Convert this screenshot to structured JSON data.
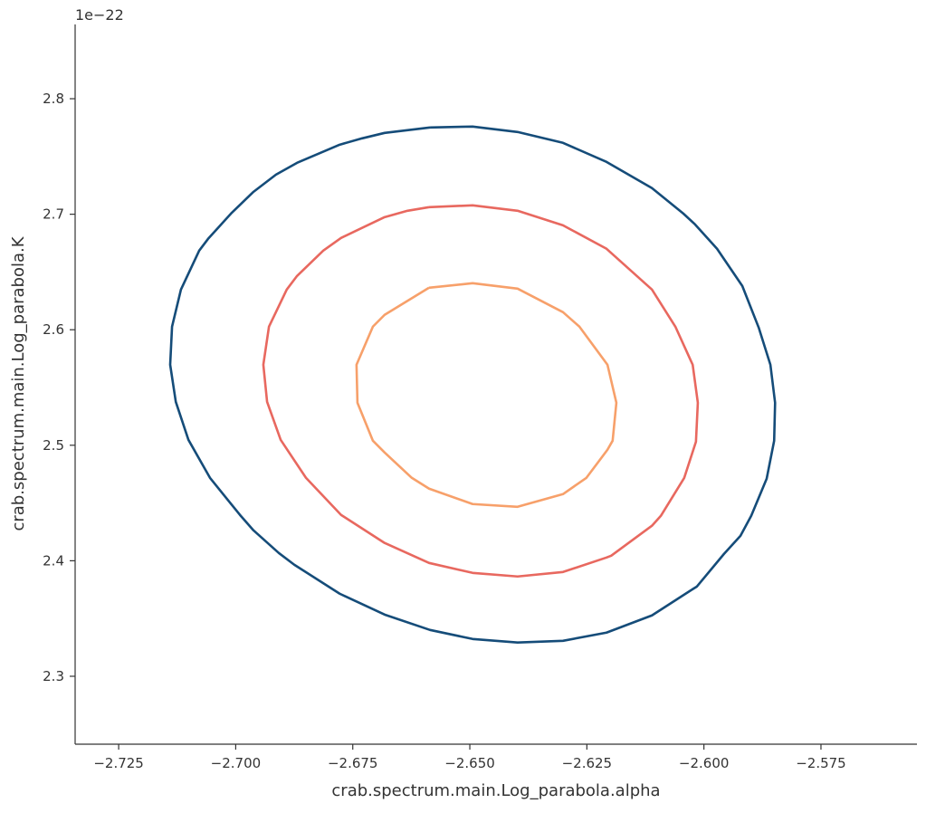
{
  "chart_data": {
    "type": "contour",
    "xlabel": "crab.spectrum.main.Log_parabola.alpha",
    "ylabel": "crab.spectrum.main.Log_parabola.K",
    "y_offset_label": "1e−22",
    "xlim": [
      -2.7343,
      -2.5545
    ],
    "ylim": [
      2.2412,
      2.8643
    ],
    "xticks": [
      {
        "value": -2.725,
        "label": "−2.725"
      },
      {
        "value": -2.7,
        "label": "−2.700"
      },
      {
        "value": -2.675,
        "label": "−2.675"
      },
      {
        "value": -2.65,
        "label": "−2.650"
      },
      {
        "value": -2.625,
        "label": "−2.625"
      },
      {
        "value": -2.6,
        "label": "−2.600"
      },
      {
        "value": -2.575,
        "label": "−2.575"
      }
    ],
    "yticks": [
      2.3,
      2.4,
      2.5,
      2.6,
      2.7,
      2.8
    ],
    "series": [
      {
        "color": "#154c79",
        "x": [
          -2.6585,
          -2.6494,
          -2.6398,
          -2.6301,
          -2.6208,
          -2.6111,
          -2.6044,
          -2.6019,
          -2.5972,
          -2.5918,
          -2.5883,
          -2.5858,
          -2.5848,
          -2.585,
          -2.5866,
          -2.5899,
          -2.5922,
          -2.5957,
          -2.6015,
          -2.6024,
          -2.6111,
          -2.6208,
          -2.6301,
          -2.6398,
          -2.6494,
          -2.6585,
          -2.6682,
          -2.6778,
          -2.6875,
          -2.6908,
          -2.6962,
          -2.6991,
          -2.7055,
          -2.7101,
          -2.7128,
          -2.714,
          -2.7136,
          -2.7117,
          -2.7078,
          -2.7059,
          -2.701,
          -2.6962,
          -2.6914,
          -2.6869,
          -2.6778,
          -2.673,
          -2.6682,
          -2.6585
        ],
        "y": [
          2.7751,
          2.7759,
          2.7712,
          2.7618,
          2.7453,
          2.7226,
          2.7006,
          2.6912,
          2.6701,
          2.6379,
          2.6019,
          2.5697,
          2.5368,
          2.5039,
          2.471,
          2.4389,
          2.4216,
          2.406,
          2.3777,
          2.3754,
          2.3527,
          2.3378,
          2.3307,
          2.3292,
          2.3323,
          2.3401,
          2.3534,
          2.3715,
          2.3966,
          2.4067,
          2.4263,
          2.4397,
          2.4718,
          2.5047,
          2.5376,
          2.5697,
          2.6027,
          2.6348,
          2.6685,
          2.6787,
          2.7006,
          2.7194,
          2.7343,
          2.7445,
          2.7602,
          2.7657,
          2.7704,
          2.7751
        ]
      },
      {
        "color": "#e8685f",
        "x": [
          -2.6587,
          -2.6494,
          -2.6398,
          -2.6301,
          -2.6208,
          -2.6111,
          -2.6061,
          -2.6024,
          -2.6013,
          -2.6017,
          -2.6042,
          -2.6092,
          -2.6111,
          -2.6198,
          -2.6208,
          -2.6301,
          -2.6398,
          -2.6494,
          -2.6587,
          -2.6682,
          -2.6775,
          -2.685,
          -2.6904,
          -2.6933,
          -2.6941,
          -2.6929,
          -2.6891,
          -2.6869,
          -2.6813,
          -2.6775,
          -2.6682,
          -2.6633,
          -2.6587
        ],
        "y": [
          2.7061,
          2.7077,
          2.703,
          2.6904,
          2.6701,
          2.6348,
          2.6027,
          2.5697,
          2.5368,
          2.5031,
          2.4718,
          2.4389,
          2.4303,
          2.4044,
          2.4028,
          2.3903,
          2.3864,
          2.3895,
          2.3981,
          2.4154,
          2.4397,
          2.4718,
          2.5047,
          2.5376,
          2.5697,
          2.6027,
          2.6348,
          2.6466,
          2.6685,
          2.6795,
          2.6975,
          2.703,
          2.7061
        ]
      },
      {
        "color": "#f7a06a",
        "x": [
          -2.6587,
          -2.6494,
          -2.6398,
          -2.6301,
          -2.6266,
          -2.6206,
          -2.6187,
          -2.6195,
          -2.6206,
          -2.6251,
          -2.6301,
          -2.6398,
          -2.6494,
          -2.6587,
          -2.6624,
          -2.6682,
          -2.6707,
          -2.674,
          -2.6742,
          -2.6707,
          -2.6682,
          -2.6587
        ],
        "y": [
          2.6364,
          2.6403,
          2.6356,
          2.6152,
          2.6027,
          2.5697,
          2.5368,
          2.5039,
          2.4961,
          2.4718,
          2.4577,
          2.4467,
          2.4491,
          2.4624,
          2.4718,
          2.4937,
          2.5039,
          2.5368,
          2.5697,
          2.6027,
          2.6129,
          2.6364
        ]
      }
    ]
  }
}
